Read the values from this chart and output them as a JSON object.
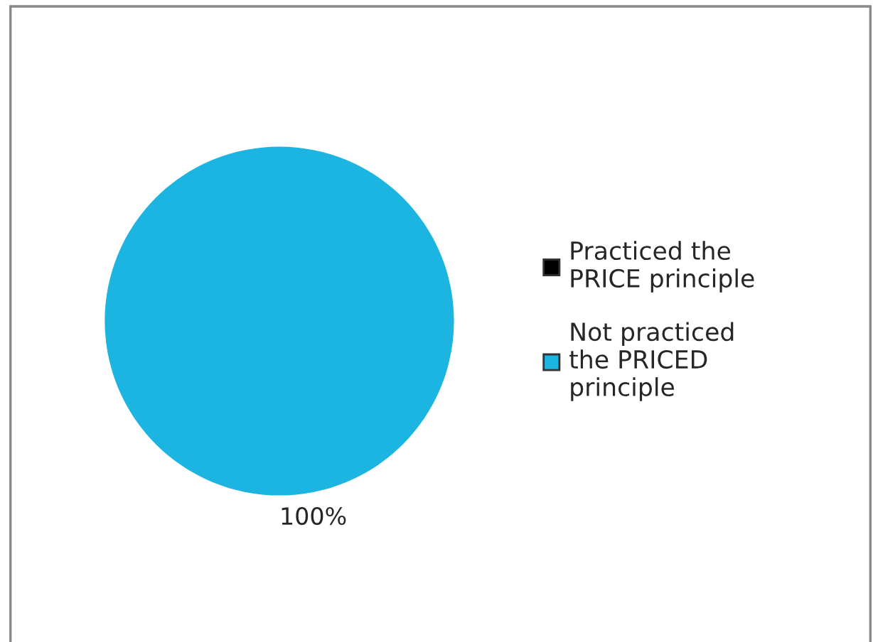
{
  "chart_data": {
    "type": "pie",
    "categories": [
      "Practiced the PRICE principle",
      "Not practiced the PRICED principle"
    ],
    "values": [
      0,
      100
    ],
    "colors": [
      "#000000",
      "#1cb4e0"
    ],
    "value_labels": [
      null,
      "100%"
    ],
    "legend": "right"
  }
}
